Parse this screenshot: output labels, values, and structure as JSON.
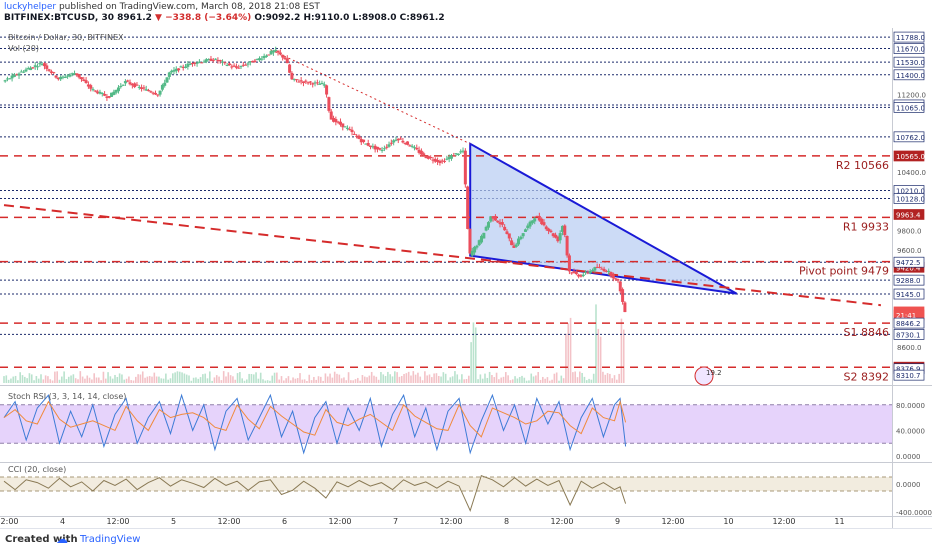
{
  "header": {
    "author": "luckyhelper",
    "published_text": "published on TradingView.com, March 08, 2018 21:08 EST",
    "symbol": "BITFINEX:BTCUSD, 30",
    "last": "8961.2",
    "change": "−338.8 (−3.64%)",
    "ohlc": "O:9092.2 H:9110.0 L:8908.0 C:8961.2"
  },
  "colors": {
    "up": "#53b987",
    "down": "#eb4d5c",
    "trend": "#1a1ad6",
    "triangle_fill": "#b7ccf2",
    "pivot": "#d52b2b",
    "rsi_band": "#e6d3fb"
  },
  "chart_data": {
    "type": "candlestick",
    "title": "Bitcoin / Dollar, 30, BITFINEX",
    "indicator_label": "Vol (20)",
    "x_ticks": [
      "12:00",
      "4",
      "12:00",
      "5",
      "12:00",
      "6",
      "12:00",
      "7",
      "12:00",
      "8",
      "12:00",
      "9",
      "12:00",
      "10",
      "12:00",
      "11"
    ],
    "price_ticks": [
      11200.0,
      10400.0,
      9800.0,
      9600.0,
      8600.0
    ],
    "ylim": [
      8230,
      11830
    ],
    "x_range_days": [
      3.5,
      11.5
    ],
    "price_anchors": [
      [
        3.5,
        11330
      ],
      [
        3.7,
        11450
      ],
      [
        3.85,
        11520
      ],
      [
        4.0,
        11360
      ],
      [
        4.15,
        11420
      ],
      [
        4.3,
        11250
      ],
      [
        4.45,
        11170
      ],
      [
        4.6,
        11330
      ],
      [
        4.75,
        11260
      ],
      [
        4.9,
        11200
      ],
      [
        5.0,
        11420
      ],
      [
        5.2,
        11520
      ],
      [
        5.4,
        11560
      ],
      [
        5.6,
        11470
      ],
      [
        5.8,
        11560
      ],
      [
        5.95,
        11650
      ],
      [
        6.05,
        11560
      ],
      [
        6.1,
        11350
      ],
      [
        6.25,
        11320
      ],
      [
        6.4,
        11300
      ],
      [
        6.45,
        10950
      ],
      [
        6.6,
        10850
      ],
      [
        6.75,
        10700
      ],
      [
        6.9,
        10620
      ],
      [
        7.05,
        10750
      ],
      [
        7.2,
        10650
      ],
      [
        7.3,
        10560
      ],
      [
        7.45,
        10500
      ],
      [
        7.55,
        10570
      ],
      [
        7.65,
        10620
      ],
      [
        7.7,
        9540
      ],
      [
        7.8,
        9700
      ],
      [
        7.9,
        9950
      ],
      [
        8.0,
        9850
      ],
      [
        8.1,
        9620
      ],
      [
        8.2,
        9800
      ],
      [
        8.3,
        9950
      ],
      [
        8.4,
        9820
      ],
      [
        8.5,
        9700
      ],
      [
        8.55,
        9880
      ],
      [
        8.6,
        9380
      ],
      [
        8.7,
        9330
      ],
      [
        8.85,
        9420
      ],
      [
        8.95,
        9380
      ],
      [
        9.0,
        9320
      ],
      [
        9.05,
        9260
      ],
      [
        9.1,
        8961.2
      ]
    ],
    "volume_spikes_day": [
      7.72,
      8.58,
      8.85,
      9.08
    ],
    "price_labels": [
      "11788.0",
      "11670.0",
      "11530.0",
      "11400.0",
      "11090.0",
      "11065.0",
      "10762.0",
      "10565.0",
      "10210.0",
      "10128.0",
      "9963.4",
      "9420.4",
      "9472.5",
      "9288.0",
      "9145.0",
      "8961.2",
      "21:41",
      "8846.2",
      "8730.1",
      "8392.8",
      "8376.9",
      "8310.7"
    ],
    "horizontal_levels": [
      11788.0,
      11670.0,
      11530.0,
      11400.0,
      11090.0,
      11065.0,
      10762.0,
      10210.0,
      10128.0,
      9472.5,
      9288.0,
      9145.0,
      8730.1
    ],
    "pivots": [
      {
        "label": "R2 10566",
        "value": 10566
      },
      {
        "label": "R1 9933",
        "value": 9933
      },
      {
        "label": "Pivot point 9479",
        "value": 9479
      },
      {
        "label": "S1 8846",
        "value": 8846
      },
      {
        "label": "S2 8392",
        "value": 8392
      }
    ],
    "triangle": [
      [
        7.7,
        10690
      ],
      [
        7.7,
        9540
      ],
      [
        10.1,
        9150
      ]
    ],
    "support_line": [
      [
        3.5,
        10060
      ],
      [
        11.4,
        9030
      ]
    ],
    "dotted_trend": [
      [
        5.9,
        11660
      ],
      [
        7.7,
        10690
      ]
    ],
    "overlay_label": "19.2"
  },
  "stoch_rsi": {
    "label": "Stoch RSI (3, 3, 14, 14, close)",
    "ticks": [
      "80.0000",
      "40.0000",
      "0.0000"
    ],
    "values": [
      [
        3.5,
        60
      ],
      [
        3.6,
        85
      ],
      [
        3.7,
        25
      ],
      [
        3.8,
        75
      ],
      [
        3.9,
        95
      ],
      [
        4.0,
        20
      ],
      [
        4.1,
        70
      ],
      [
        4.2,
        30
      ],
      [
        4.3,
        80
      ],
      [
        4.4,
        15
      ],
      [
        4.5,
        65
      ],
      [
        4.6,
        90
      ],
      [
        4.7,
        20
      ],
      [
        4.8,
        60
      ],
      [
        4.9,
        85
      ],
      [
        5.0,
        35
      ],
      [
        5.1,
        95
      ],
      [
        5.2,
        40
      ],
      [
        5.3,
        80
      ],
      [
        5.4,
        10
      ],
      [
        5.5,
        70
      ],
      [
        5.6,
        90
      ],
      [
        5.7,
        25
      ],
      [
        5.8,
        60
      ],
      [
        5.9,
        95
      ],
      [
        6.0,
        30
      ],
      [
        6.1,
        70
      ],
      [
        6.2,
        5
      ],
      [
        6.3,
        60
      ],
      [
        6.4,
        85
      ],
      [
        6.5,
        20
      ],
      [
        6.6,
        75
      ],
      [
        6.7,
        40
      ],
      [
        6.8,
        90
      ],
      [
        6.9,
        15
      ],
      [
        7.0,
        65
      ],
      [
        7.1,
        95
      ],
      [
        7.2,
        30
      ],
      [
        7.3,
        75
      ],
      [
        7.4,
        10
      ],
      [
        7.5,
        70
      ],
      [
        7.6,
        90
      ],
      [
        7.7,
        5
      ],
      [
        7.8,
        55
      ],
      [
        7.9,
        95
      ],
      [
        8.0,
        40
      ],
      [
        8.1,
        80
      ],
      [
        8.2,
        20
      ],
      [
        8.3,
        90
      ],
      [
        8.4,
        50
      ],
      [
        8.5,
        85
      ],
      [
        8.6,
        10
      ],
      [
        8.7,
        60
      ],
      [
        8.8,
        90
      ],
      [
        8.9,
        30
      ],
      [
        9.0,
        80
      ],
      [
        9.05,
        90
      ],
      [
        9.1,
        15
      ]
    ]
  },
  "cci": {
    "label": "CCI (20, close)",
    "ticks": [
      "0.0000",
      "-400.0000"
    ],
    "values": [
      [
        3.5,
        40
      ],
      [
        3.6,
        -80
      ],
      [
        3.7,
        60
      ],
      [
        3.8,
        20
      ],
      [
        3.9,
        -60
      ],
      [
        4.0,
        80
      ],
      [
        4.1,
        -40
      ],
      [
        4.2,
        30
      ],
      [
        4.3,
        -100
      ],
      [
        4.4,
        50
      ],
      [
        4.5,
        -20
      ],
      [
        4.6,
        70
      ],
      [
        4.7,
        -80
      ],
      [
        4.8,
        20
      ],
      [
        4.9,
        90
      ],
      [
        5.0,
        -30
      ],
      [
        5.1,
        60
      ],
      [
        5.2,
        10
      ],
      [
        5.3,
        -50
      ],
      [
        5.4,
        80
      ],
      [
        5.5,
        -20
      ],
      [
        5.6,
        40
      ],
      [
        5.7,
        -90
      ],
      [
        5.8,
        30
      ],
      [
        5.9,
        60
      ],
      [
        6.0,
        -150
      ],
      [
        6.1,
        -90
      ],
      [
        6.2,
        40
      ],
      [
        6.3,
        -60
      ],
      [
        6.4,
        -200
      ],
      [
        6.5,
        30
      ],
      [
        6.6,
        -40
      ],
      [
        6.7,
        50
      ],
      [
        6.8,
        -30
      ],
      [
        6.9,
        20
      ],
      [
        7.0,
        -80
      ],
      [
        7.1,
        60
      ],
      [
        7.2,
        -20
      ],
      [
        7.3,
        30
      ],
      [
        7.4,
        -60
      ],
      [
        7.5,
        40
      ],
      [
        7.6,
        -30
      ],
      [
        7.7,
        -380
      ],
      [
        7.8,
        120
      ],
      [
        7.9,
        60
      ],
      [
        8.0,
        -40
      ],
      [
        8.1,
        90
      ],
      [
        8.2,
        -30
      ],
      [
        8.3,
        70
      ],
      [
        8.4,
        -20
      ],
      [
        8.5,
        50
      ],
      [
        8.6,
        -300
      ],
      [
        8.7,
        40
      ],
      [
        8.8,
        -60
      ],
      [
        8.9,
        20
      ],
      [
        9.0,
        -80
      ],
      [
        9.05,
        -40
      ],
      [
        9.1,
        -280
      ]
    ]
  },
  "footer": {
    "created_with": "Created with",
    "brand": "TradingView"
  }
}
